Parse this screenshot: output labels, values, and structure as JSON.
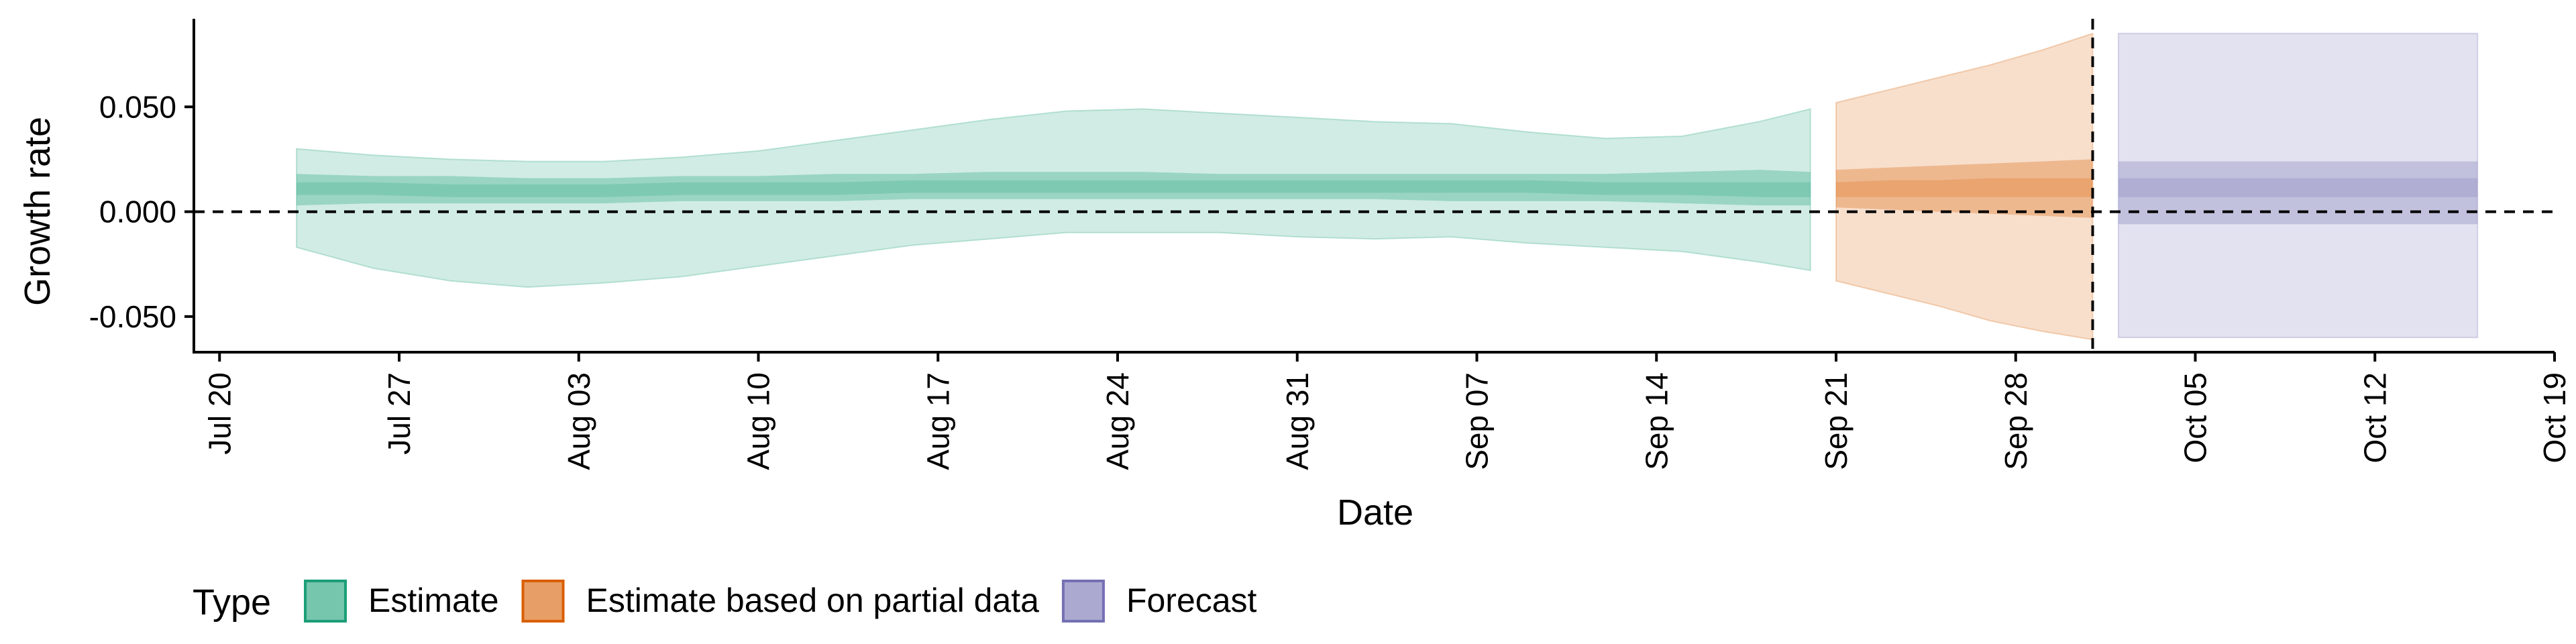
{
  "chart_data": {
    "type": "area",
    "xlabel": "Date",
    "ylabel": "Growth rate",
    "x_ticks": [
      "2020-07-20",
      "2020-07-27",
      "2020-08-03",
      "2020-08-10",
      "2020-08-17",
      "2020-08-24",
      "2020-08-31",
      "2020-09-07",
      "2020-09-14",
      "2020-09-21",
      "2020-09-28",
      "2020-10-05",
      "2020-10-12",
      "2020-10-19"
    ],
    "x_tick_labels": [
      "Jul 20",
      "Jul 27",
      "Aug 03",
      "Aug 10",
      "Aug 17",
      "Aug 24",
      "Aug 31",
      "Sep 07",
      "Sep 14",
      "Sep 21",
      "Sep 28",
      "Oct 05",
      "Oct 12",
      "Oct 19"
    ],
    "x_range": [
      "2020-07-19",
      "2020-10-19"
    ],
    "y_ticks": [
      -0.05,
      0.0,
      0.05
    ],
    "y_tick_labels": [
      "-0.050",
      "0.000",
      "0.050"
    ],
    "ylim": [
      -0.067,
      0.092
    ],
    "reference_lines": {
      "horizontal_y": 0.0,
      "vertical_x": "2020-10-01",
      "style": "dashed"
    },
    "grid": false,
    "legend": {
      "title": "Type",
      "position": "bottom-left",
      "entries": [
        {
          "label": "Estimate",
          "color": "#1b9e77"
        },
        {
          "label": "Estimate based on partial data",
          "color": "#d95f02"
        },
        {
          "label": "Forecast",
          "color": "#7570b3"
        }
      ]
    },
    "series": [
      {
        "name": "Estimate",
        "color": "#1b9e77",
        "x": [
          "2020-07-23",
          "2020-07-26",
          "2020-07-29",
          "2020-08-01",
          "2020-08-04",
          "2020-08-07",
          "2020-08-10",
          "2020-08-13",
          "2020-08-16",
          "2020-08-19",
          "2020-08-22",
          "2020-08-25",
          "2020-08-28",
          "2020-08-31",
          "2020-09-03",
          "2020-09-06",
          "2020-09-09",
          "2020-09-12",
          "2020-09-15",
          "2020-09-18",
          "2020-09-20"
        ],
        "median": [
          0.011,
          0.011,
          0.01,
          0.01,
          0.01,
          0.011,
          0.011,
          0.011,
          0.012,
          0.012,
          0.012,
          0.012,
          0.012,
          0.012,
          0.012,
          0.012,
          0.012,
          0.011,
          0.011,
          0.011,
          0.011
        ],
        "lower_20": [
          0.008,
          0.008,
          0.007,
          0.007,
          0.007,
          0.008,
          0.008,
          0.008,
          0.009,
          0.009,
          0.009,
          0.009,
          0.009,
          0.009,
          0.009,
          0.009,
          0.009,
          0.008,
          0.008,
          0.007,
          0.007
        ],
        "upper_20": [
          0.014,
          0.014,
          0.013,
          0.013,
          0.013,
          0.014,
          0.014,
          0.014,
          0.015,
          0.015,
          0.015,
          0.015,
          0.015,
          0.015,
          0.015,
          0.015,
          0.015,
          0.014,
          0.014,
          0.014,
          0.014
        ],
        "lower_50": [
          0.003,
          0.004,
          0.004,
          0.004,
          0.004,
          0.005,
          0.005,
          0.005,
          0.006,
          0.006,
          0.006,
          0.006,
          0.006,
          0.006,
          0.006,
          0.005,
          0.005,
          0.005,
          0.004,
          0.003,
          0.003
        ],
        "upper_50": [
          0.018,
          0.017,
          0.017,
          0.016,
          0.016,
          0.017,
          0.017,
          0.018,
          0.018,
          0.019,
          0.019,
          0.019,
          0.018,
          0.018,
          0.018,
          0.018,
          0.018,
          0.018,
          0.019,
          0.02,
          0.019
        ],
        "lower_90": [
          -0.017,
          -0.027,
          -0.033,
          -0.036,
          -0.034,
          -0.031,
          -0.026,
          -0.021,
          -0.016,
          -0.013,
          -0.01,
          -0.01,
          -0.01,
          -0.012,
          -0.013,
          -0.012,
          -0.015,
          -0.017,
          -0.019,
          -0.024,
          -0.028
        ],
        "upper_90": [
          0.03,
          0.027,
          0.025,
          0.024,
          0.024,
          0.026,
          0.029,
          0.034,
          0.039,
          0.044,
          0.048,
          0.049,
          0.047,
          0.045,
          0.043,
          0.042,
          0.038,
          0.035,
          0.036,
          0.043,
          0.049
        ]
      },
      {
        "name": "Estimate based on partial data",
        "color": "#d95f02",
        "x": [
          "2020-09-21",
          "2020-09-23",
          "2020-09-25",
          "2020-09-27",
          "2020-09-29",
          "2020-10-01"
        ],
        "median": [
          0.01,
          0.011,
          0.011,
          0.012,
          0.012,
          0.012
        ],
        "lower_20": [
          0.007,
          0.007,
          0.007,
          0.007,
          0.007,
          0.007
        ],
        "upper_20": [
          0.014,
          0.015,
          0.015,
          0.016,
          0.016,
          0.016
        ],
        "lower_50": [
          0.002,
          0.001,
          0.0,
          -0.001,
          -0.002,
          -0.003
        ],
        "upper_50": [
          0.02,
          0.021,
          0.022,
          0.023,
          0.024,
          0.025
        ],
        "lower_90": [
          -0.033,
          -0.039,
          -0.045,
          -0.052,
          -0.057,
          -0.061
        ],
        "upper_90": [
          0.052,
          0.058,
          0.064,
          0.07,
          0.077,
          0.085
        ]
      },
      {
        "name": "Forecast",
        "color": "#7570b3",
        "x": [
          "2020-10-02",
          "2020-10-16"
        ],
        "median": [
          0.012,
          0.012
        ],
        "lower_20": [
          0.007,
          0.007
        ],
        "upper_20": [
          0.016,
          0.016
        ],
        "lower_50": [
          -0.006,
          -0.006
        ],
        "upper_50": [
          0.024,
          0.024
        ],
        "lower_90": [
          -0.06,
          -0.06
        ],
        "upper_90": [
          0.085,
          0.085
        ]
      }
    ]
  }
}
